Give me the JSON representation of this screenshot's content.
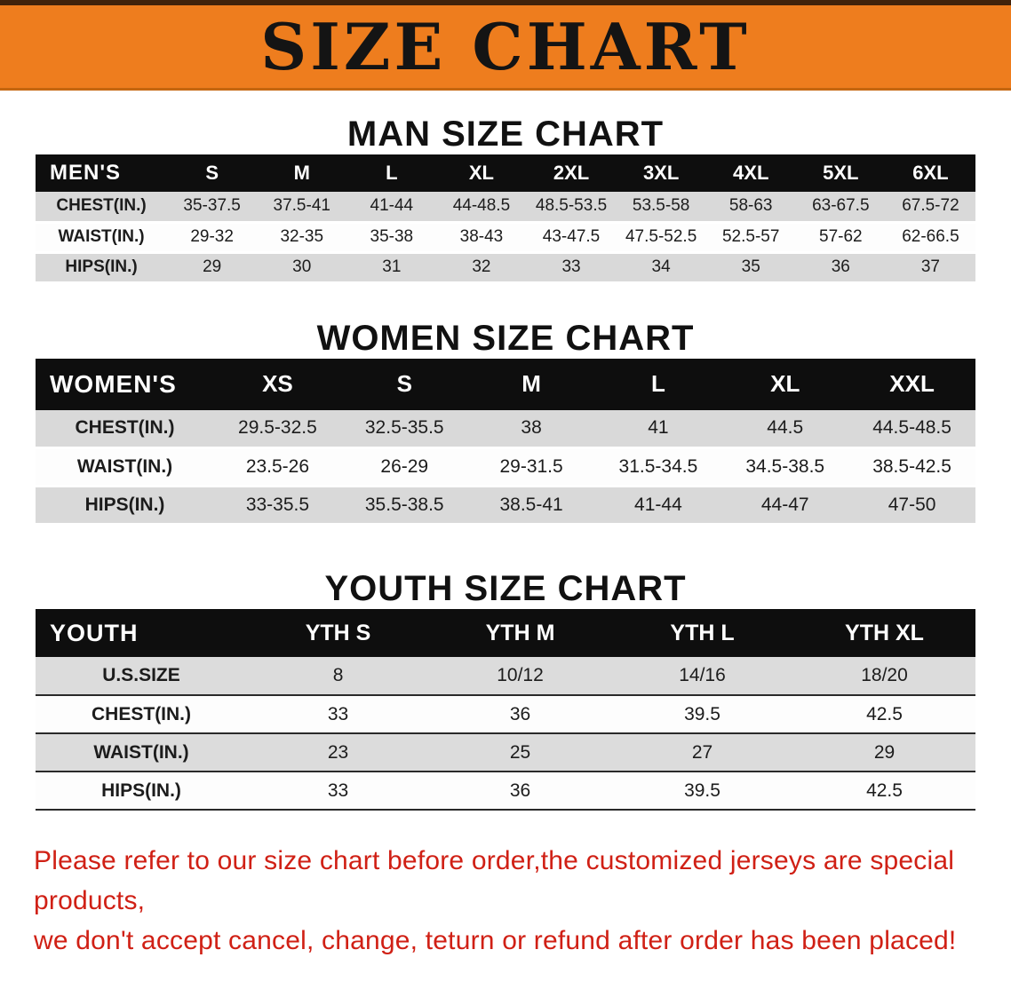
{
  "banner": {
    "title": "SIZE CHART",
    "bg_color": "#ee7d1e",
    "text_color": "#141414"
  },
  "men": {
    "heading": "MAN SIZE CHART",
    "header": [
      "MEN'S",
      "S",
      "M",
      "L",
      "XL",
      "2XL",
      "3XL",
      "4XL",
      "5XL",
      "6XL"
    ],
    "rows": [
      [
        "CHEST(IN.)",
        "35-37.5",
        "37.5-41",
        "41-44",
        "44-48.5",
        "48.5-53.5",
        "53.5-58",
        "58-63",
        "63-67.5",
        "67.5-72"
      ],
      [
        "WAIST(IN.)",
        "29-32",
        "32-35",
        "35-38",
        "38-43",
        "43-47.5",
        "47.5-52.5",
        "52.5-57",
        "57-62",
        "62-66.5"
      ],
      [
        "HIPS(IN.)",
        "29",
        "30",
        "31",
        "32",
        "33",
        "34",
        "35",
        "36",
        "37"
      ]
    ]
  },
  "women": {
    "heading": "WOMEN SIZE CHART",
    "header": [
      "WOMEN'S",
      "XS",
      "S",
      "M",
      "L",
      "XL",
      "XXL"
    ],
    "rows": [
      [
        "CHEST(IN.)",
        "29.5-32.5",
        "32.5-35.5",
        "38",
        "41",
        "44.5",
        "44.5-48.5"
      ],
      [
        "WAIST(IN.)",
        "23.5-26",
        "26-29",
        "29-31.5",
        "31.5-34.5",
        "34.5-38.5",
        "38.5-42.5"
      ],
      [
        "HIPS(IN.)",
        "33-35.5",
        "35.5-38.5",
        "38.5-41",
        "41-44",
        "44-47",
        "47-50"
      ]
    ]
  },
  "youth": {
    "heading": "YOUTH SIZE CHART",
    "header": [
      "YOUTH",
      "YTH S",
      "YTH M",
      "YTH L",
      "YTH XL"
    ],
    "rows": [
      [
        "U.S.SIZE",
        "8",
        "10/12",
        "14/16",
        "18/20"
      ],
      [
        "CHEST(IN.)",
        "33",
        "36",
        "39.5",
        "42.5"
      ],
      [
        "WAIST(IN.)",
        "23",
        "25",
        "27",
        "29"
      ],
      [
        "HIPS(IN.)",
        "33",
        "36",
        "39.5",
        "42.5"
      ]
    ]
  },
  "disclaimer": {
    "line1": "Please refer to our size chart before order,the customized jerseys are special products,",
    "line2": "we don't accept cancel, change, teturn or refund after order has been placed!",
    "color": "#d02015"
  }
}
